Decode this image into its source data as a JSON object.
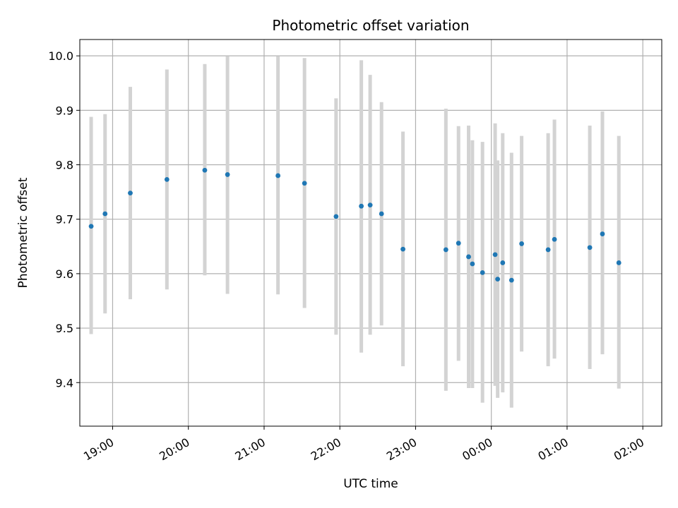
{
  "chart_data": {
    "type": "scatter",
    "title": "Photometric offset variation",
    "xlabel": "UTC time",
    "ylabel": "Photometric offset",
    "x_ticks": [
      "19:00",
      "20:00",
      "21:00",
      "22:00",
      "23:00",
      "00:00",
      "01:00",
      "02:00"
    ],
    "y_ticks": [
      "9.4",
      "9.5",
      "9.6",
      "9.7",
      "9.8",
      "9.9",
      "10.0"
    ],
    "ylim": [
      9.32,
      10.03
    ],
    "xlim": [
      "18:34",
      "02:15"
    ],
    "grid": true,
    "colors": {
      "points": "#1f77b4",
      "error_bars": "#d3d3d3",
      "grid": "#b0b0b0"
    },
    "series": [
      {
        "points": [
          {
            "x": "18:43",
            "y": 9.687,
            "y_low": 9.489,
            "y_high": 9.888
          },
          {
            "x": "18:54",
            "y": 9.71,
            "y_low": 9.527,
            "y_high": 9.893
          },
          {
            "x": "19:14",
            "y": 9.748,
            "y_low": 9.553,
            "y_high": 9.943
          },
          {
            "x": "19:43",
            "y": 9.773,
            "y_low": 9.571,
            "y_high": 9.975
          },
          {
            "x": "20:13",
            "y": 9.79,
            "y_low": 9.597,
            "y_high": 9.985
          },
          {
            "x": "20:31",
            "y": 9.782,
            "y_low": 9.563,
            "y_high": 9.999
          },
          {
            "x": "21:11",
            "y": 9.78,
            "y_low": 9.562,
            "y_high": 9.999
          },
          {
            "x": "21:32",
            "y": 9.766,
            "y_low": 9.537,
            "y_high": 9.996
          },
          {
            "x": "21:57",
            "y": 9.705,
            "y_low": 9.488,
            "y_high": 9.922
          },
          {
            "x": "22:17",
            "y": 9.724,
            "y_low": 9.455,
            "y_high": 9.992
          },
          {
            "x": "22:24",
            "y": 9.726,
            "y_low": 9.488,
            "y_high": 9.965
          },
          {
            "x": "22:33",
            "y": 9.71,
            "y_low": 9.505,
            "y_high": 9.915
          },
          {
            "x": "22:50",
            "y": 9.645,
            "y_low": 9.43,
            "y_high": 9.861
          },
          {
            "x": "23:24",
            "y": 9.644,
            "y_low": 9.385,
            "y_high": 9.903
          },
          {
            "x": "23:34",
            "y": 9.656,
            "y_low": 9.44,
            "y_high": 9.871
          },
          {
            "x": "23:42",
            "y": 9.631,
            "y_low": 9.39,
            "y_high": 9.872
          },
          {
            "x": "23:45",
            "y": 9.618,
            "y_low": 9.39,
            "y_high": 9.845
          },
          {
            "x": "23:53",
            "y": 9.602,
            "y_low": 9.363,
            "y_high": 9.842
          },
          {
            "x": "00:03",
            "y": 9.635,
            "y_low": 9.394,
            "y_high": 9.876
          },
          {
            "x": "00:05",
            "y": 9.59,
            "y_low": 9.372,
            "y_high": 9.808
          },
          {
            "x": "00:09",
            "y": 9.62,
            "y_low": 9.382,
            "y_high": 9.858
          },
          {
            "x": "00:16",
            "y": 9.588,
            "y_low": 9.354,
            "y_high": 9.822
          },
          {
            "x": "00:24",
            "y": 9.655,
            "y_low": 9.457,
            "y_high": 9.853
          },
          {
            "x": "00:45",
            "y": 9.644,
            "y_low": 9.43,
            "y_high": 9.858
          },
          {
            "x": "00:50",
            "y": 9.663,
            "y_low": 9.444,
            "y_high": 9.883
          },
          {
            "x": "01:18",
            "y": 9.648,
            "y_low": 9.425,
            "y_high": 9.872
          },
          {
            "x": "01:28",
            "y": 9.673,
            "y_low": 9.452,
            "y_high": 9.898
          },
          {
            "x": "01:41",
            "y": 9.62,
            "y_low": 9.389,
            "y_high": 9.853
          }
        ]
      }
    ]
  }
}
